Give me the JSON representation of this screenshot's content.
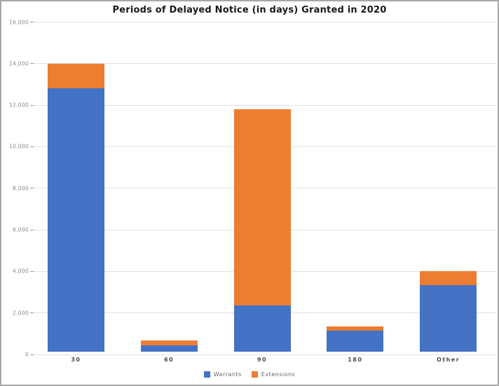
{
  "chart_data": {
    "type": "bar",
    "stacked": true,
    "title": "Periods of Delayed Notice (in days) Granted in 2020",
    "categories": [
      "30",
      "60",
      "90",
      "180",
      "Other"
    ],
    "series": [
      {
        "name": "Warrants",
        "color": "#4472C4",
        "values": [
          12650,
          280,
          2200,
          1000,
          3200
        ]
      },
      {
        "name": "Extensions",
        "color": "#ED7D31",
        "values": [
          1200,
          230,
          9450,
          200,
          650
        ]
      }
    ],
    "totals": [
      13850,
      510,
      11650,
      1200,
      3850
    ],
    "xlabel": "",
    "ylabel": "",
    "ylim": [
      0,
      16000
    ],
    "ytick_step": 2000,
    "yticks": [
      {
        "value": 16000,
        "label": "16,000"
      },
      {
        "value": 14000,
        "label": "14,000"
      },
      {
        "value": 12000,
        "label": "12,000"
      },
      {
        "value": 10000,
        "label": "10,000"
      },
      {
        "value": 8000,
        "label": "8,000"
      },
      {
        "value": 6000,
        "label": "6,000"
      },
      {
        "value": 4000,
        "label": "4,000"
      },
      {
        "value": 2000,
        "label": "2,000"
      },
      {
        "value": 0,
        "label": "0"
      }
    ],
    "grid": "horizontal",
    "legend_position": "bottom",
    "background_color": "#ffffff",
    "frame_border_color": "#a8a8a8"
  }
}
